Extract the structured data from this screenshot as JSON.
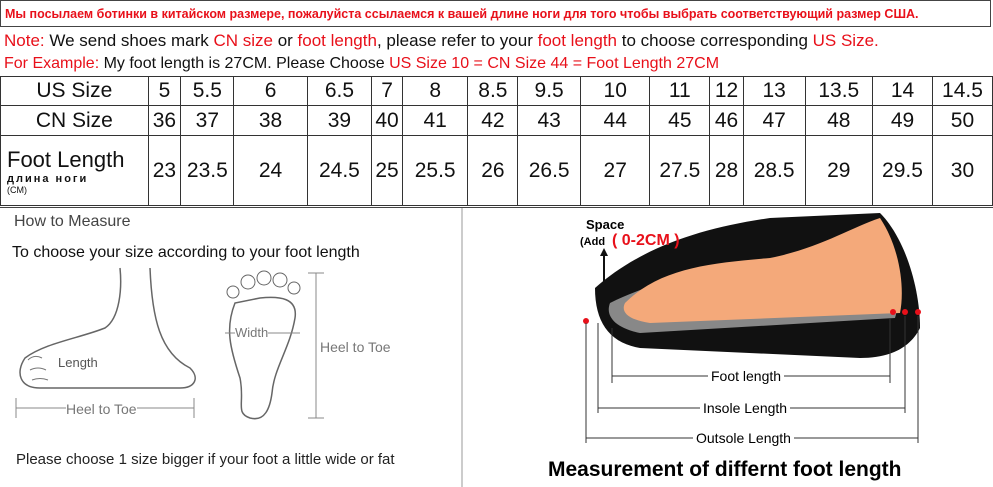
{
  "header": "Мы посылаем ботинки в китайском размере, пожалуйста ссылаемся к вашей длине ноги для того чтобы выбрать соответствующий размер США.",
  "note": [
    "Note:",
    " We send shoes mark ",
    "CN size",
    " or ",
    "foot length",
    ", please refer to your ",
    "foot length",
    " to choose corresponding ",
    "US Size."
  ],
  "example": [
    "For Example:",
    " My foot length is 27CM. Please Choose ",
    "US Size 10 = CN Size 44 = Foot Length 27CM"
  ],
  "table": {
    "rows": [
      {
        "label": "US Size",
        "cells": [
          "5",
          "5.5",
          "6",
          "6.5",
          "7",
          "8",
          "8.5",
          "9.5",
          "10",
          "11",
          "12",
          "13",
          "13.5",
          "14",
          "14.5"
        ]
      },
      {
        "label": "CN Size",
        "cells": [
          "36",
          "37",
          "38",
          "39",
          "40",
          "41",
          "42",
          "43",
          "44",
          "45",
          "46",
          "47",
          "48",
          "49",
          "50"
        ]
      },
      {
        "label": "Foot Length",
        "sublabel": "длина ноги",
        "unit": "(CM)",
        "cells": [
          "23",
          "23.5",
          "24",
          "24.5",
          "25",
          "25.5",
          "26",
          "26.5",
          "27",
          "27.5",
          "28",
          "28.5",
          "29",
          "29.5",
          "30"
        ]
      }
    ]
  },
  "how_to": {
    "title": "How to Measure",
    "subtitle": "To choose your size according to your foot length",
    "length": "Length",
    "heel_to_toe_side": "Heel to Toe",
    "width": "Width",
    "heel_to_toe_sole": "Heel to Toe",
    "tip": "Please choose 1 size bigger if your foot a little wide or fat"
  },
  "measurement": {
    "space": "Space",
    "add": "(Add",
    "range": "( 0-2CM )",
    "foot_length": "Foot length",
    "insole": "Insole Length",
    "outsole": "Outsole Length",
    "title": "Measurement of differnt foot length"
  }
}
